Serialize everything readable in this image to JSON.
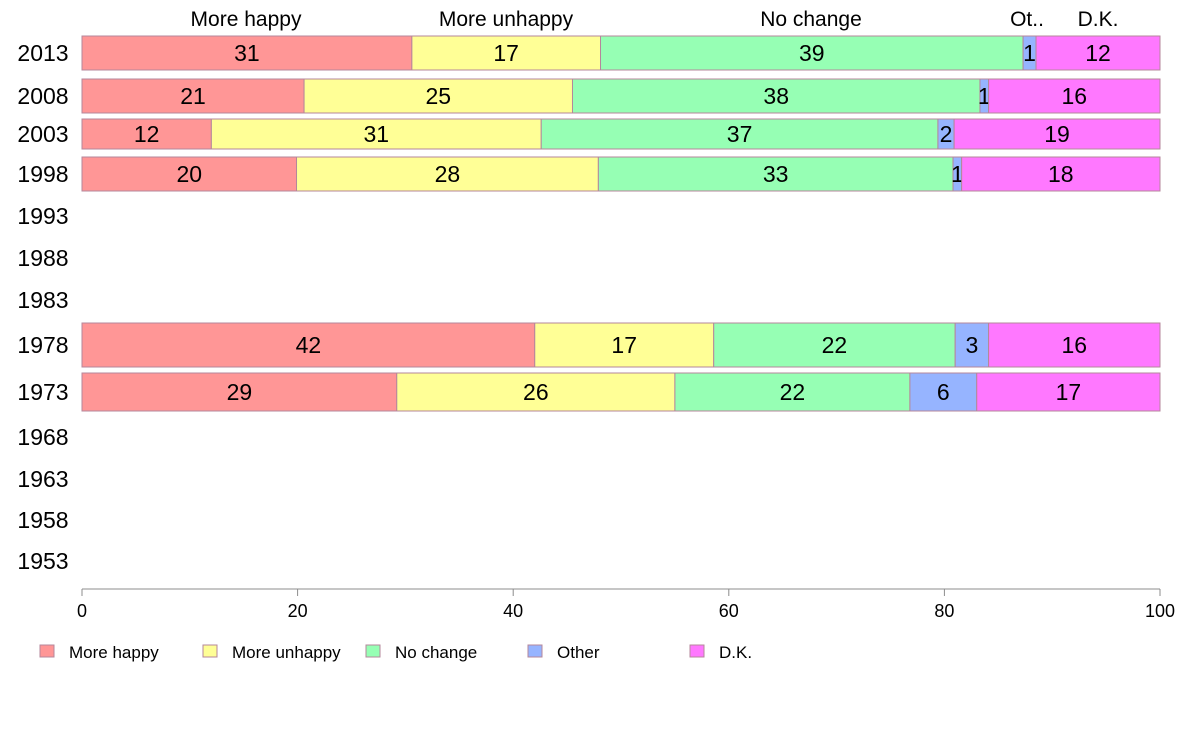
{
  "chart_data": {
    "type": "bar",
    "orientation": "horizontal",
    "stacked": true,
    "categories": [
      "2013",
      "2008",
      "2003",
      "1998",
      "1993",
      "1988",
      "1983",
      "1978",
      "1973",
      "1968",
      "1963",
      "1958",
      "1953"
    ],
    "series": [
      {
        "name": "More happy",
        "color": "#FF9696",
        "values": [
          30.6,
          20.6,
          12.0,
          19.9,
          null,
          null,
          null,
          42.0,
          29.2,
          null,
          null,
          null,
          null
        ],
        "labels": [
          "31",
          "21",
          "12",
          "20",
          null,
          null,
          null,
          "42",
          "29",
          null,
          null,
          null,
          null
        ]
      },
      {
        "name": "More unhappy",
        "color": "#FFFF96",
        "values": [
          17.5,
          24.9,
          30.6,
          28.0,
          null,
          null,
          null,
          16.6,
          25.8,
          null,
          null,
          null,
          null
        ],
        "labels": [
          "17",
          "25",
          "31",
          "28",
          null,
          null,
          null,
          "17",
          "26",
          null,
          null,
          null,
          null
        ]
      },
      {
        "name": "No change",
        "color": "#96FFB4",
        "values": [
          39.2,
          37.8,
          36.8,
          32.9,
          null,
          null,
          null,
          22.4,
          21.8,
          null,
          null,
          null,
          null
        ],
        "labels": [
          "39",
          "38",
          "37",
          "33",
          null,
          null,
          null,
          "22",
          "22",
          null,
          null,
          null,
          null
        ]
      },
      {
        "name": "Other",
        "color": "#96B4FF",
        "values": [
          1.2,
          0.8,
          1.5,
          0.8,
          null,
          null,
          null,
          3.1,
          6.2,
          null,
          null,
          null,
          null
        ],
        "labels": [
          "1",
          "1",
          "2",
          "1",
          null,
          null,
          null,
          "3",
          "6",
          null,
          null,
          null,
          null
        ]
      },
      {
        "name": "D.K.",
        "color": "#FF78FF",
        "values": [
          11.5,
          15.9,
          19.1,
          18.4,
          null,
          null,
          null,
          15.9,
          17.0,
          null,
          null,
          null,
          null
        ],
        "labels": [
          "12",
          "16",
          "19",
          "18",
          null,
          null,
          null,
          "16",
          "17",
          null,
          null,
          null,
          null
        ]
      }
    ],
    "column_headers": [
      "More happy",
      "More unhappy",
      "No change",
      "Ot..",
      "D.K."
    ],
    "x_ticks": [
      "0",
      "20",
      "40",
      "60",
      "80",
      "100"
    ],
    "xlim": [
      0,
      100
    ],
    "grid": false,
    "legend_position": "bottom-left",
    "legend": [
      "More happy",
      "More unhappy",
      "No change",
      "Other",
      "D.K."
    ]
  }
}
